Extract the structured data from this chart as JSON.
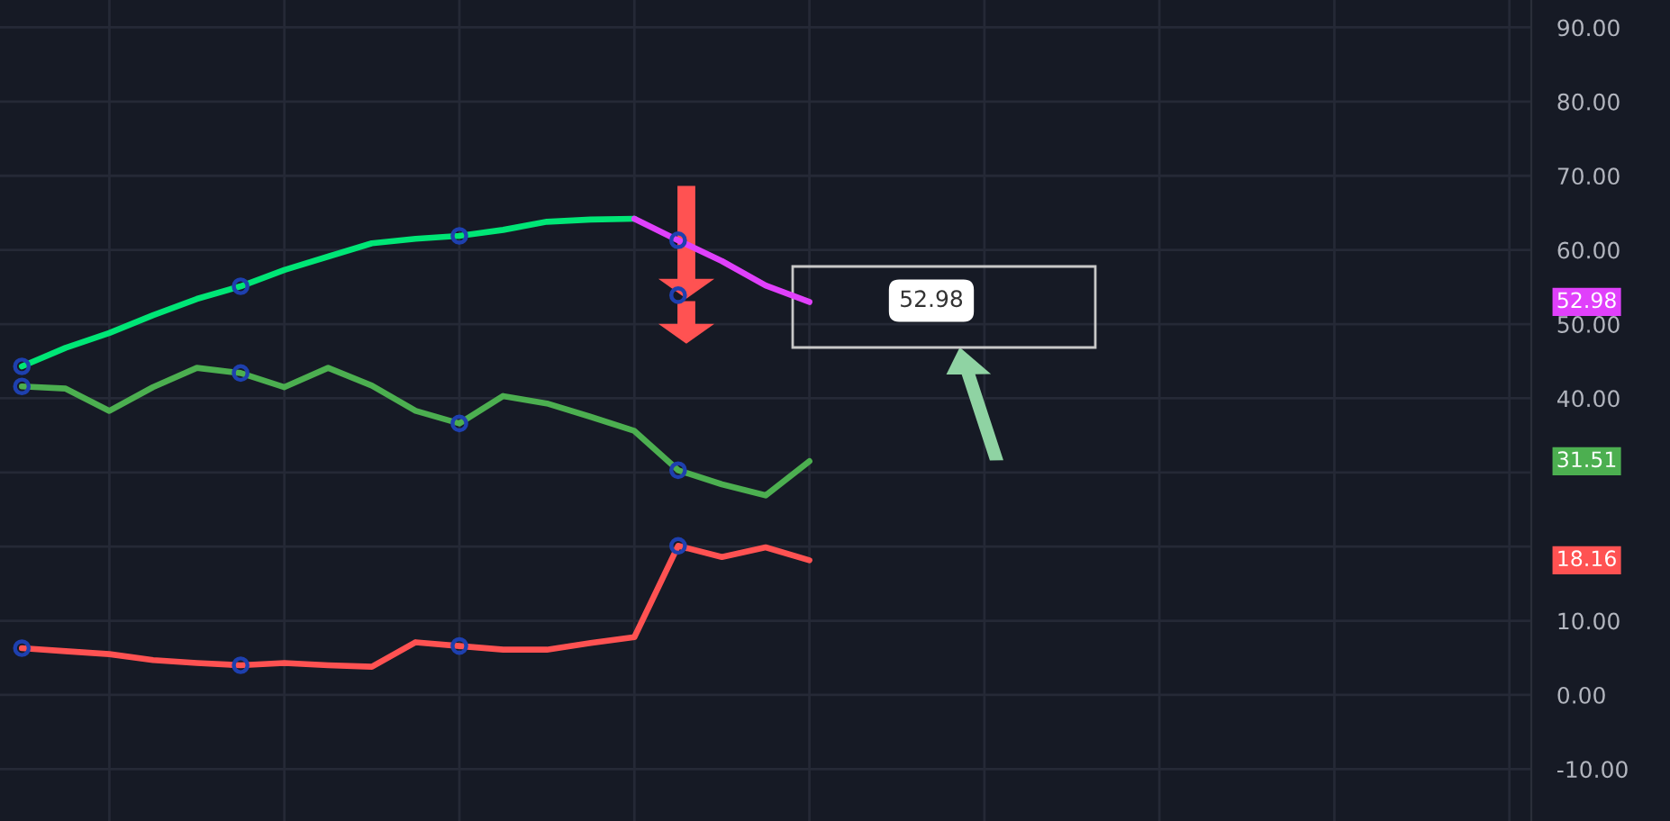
{
  "chart_data": {
    "type": "line",
    "categories": [
      null,
      null,
      null,
      null,
      null,
      null,
      null,
      null,
      null,
      null,
      null,
      null,
      null,
      null,
      null,
      null,
      null,
      null,
      null,
      null,
      null,
      null,
      null,
      null,
      null,
      null,
      null,
      null,
      null,
      null,
      null,
      null,
      null,
      null,
      null
    ],
    "series": [
      {
        "color": "#00e676",
        "values": [
          44.3,
          46.8,
          48.8,
          51.2,
          53.4,
          55.1,
          57.3,
          59.1,
          60.9,
          61.5,
          61.9,
          62.7,
          63.8,
          64.1,
          64.2,
          null,
          null,
          null,
          null,
          null,
          null,
          null,
          null,
          null,
          null,
          null,
          null,
          null,
          null,
          null,
          null,
          null,
          null,
          null,
          null
        ]
      },
      {
        "color": "#e040fb",
        "values": [
          null,
          null,
          null,
          null,
          null,
          null,
          null,
          null,
          null,
          null,
          null,
          null,
          null,
          null,
          64.2,
          61.3,
          58.5,
          55.2,
          52.98,
          null,
          null,
          null,
          null,
          null,
          null,
          null,
          null,
          null,
          null,
          null,
          null,
          null,
          null,
          null,
          null
        ]
      },
      {
        "color": "#4caf50",
        "values": [
          41.6,
          41.3,
          38.3,
          41.5,
          44.1,
          43.4,
          41.5,
          44.1,
          41.7,
          38.3,
          36.6,
          40.3,
          39.3,
          37.5,
          35.6,
          30.3,
          28.4,
          26.9,
          31.51,
          null,
          null,
          null,
          null,
          null,
          null,
          null,
          null,
          null,
          null,
          null,
          null,
          null,
          null,
          null,
          null
        ]
      },
      {
        "color": "#ff5252",
        "values": [
          6.3,
          5.9,
          5.5,
          4.7,
          4.3,
          4.0,
          4.3,
          4.0,
          3.8,
          7.1,
          6.6,
          6.1,
          6.1,
          7.0,
          7.8,
          20.1,
          18.6,
          19.9,
          18.16,
          null,
          null,
          null,
          null,
          null,
          null,
          null,
          null,
          null,
          null,
          null,
          null,
          null,
          null,
          null,
          null
        ]
      },
      {
        "type": "scatter",
        "marker": "circle",
        "color": "#1e40af",
        "values": [
          44.3,
          null,
          null,
          null,
          null,
          55.1,
          null,
          null,
          null,
          null,
          61.9,
          null,
          null,
          null,
          null,
          61.3,
          null,
          null,
          null,
          null,
          null,
          null,
          null,
          null,
          null,
          null,
          null,
          null,
          null,
          null,
          null,
          null,
          null,
          null,
          null
        ]
      },
      {
        "type": "scatter",
        "marker": "circle",
        "color": "#1e40af",
        "values": [
          41.6,
          null,
          null,
          null,
          null,
          43.4,
          null,
          null,
          null,
          null,
          36.6,
          null,
          null,
          null,
          null,
          30.3,
          null,
          null,
          null,
          null,
          null,
          null,
          null,
          null,
          null,
          null,
          null,
          null,
          null,
          null,
          null,
          null,
          null,
          null,
          null
        ]
      },
      {
        "type": "scatter",
        "marker": "circle",
        "color": "#1e40af",
        "values": [
          6.3,
          null,
          null,
          null,
          null,
          4.0,
          null,
          null,
          null,
          null,
          6.6,
          null,
          null,
          null,
          null,
          20.1,
          null,
          null,
          null,
          null,
          null,
          null,
          null,
          null,
          null,
          null,
          null,
          null,
          null,
          null,
          null,
          null,
          null,
          null,
          null
        ]
      },
      {
        "type": "scatter",
        "marker": "circle",
        "color": "#1e40af",
        "values": [
          null,
          null,
          null,
          null,
          null,
          null,
          null,
          null,
          null,
          null,
          null,
          null,
          null,
          null,
          null,
          53.9,
          null,
          null,
          null,
          null,
          null,
          null,
          null,
          null,
          null,
          null,
          null,
          null,
          null,
          null,
          null,
          null,
          null,
          null,
          null
        ]
      }
    ],
    "annotations": [
      "52.98",
      "52.98",
      "31.51",
      "18.16"
    ],
    "ylim": [
      -17,
      93.7
    ],
    "yticks": [
      {
        "value": -10,
        "label": "-10.00"
      },
      {
        "value": 0,
        "label": "0.00"
      },
      {
        "value": 10,
        "label": "10.00"
      },
      {
        "value": 20,
        "label": null
      },
      {
        "value": 30,
        "label": null
      },
      {
        "value": 40,
        "label": "40.00"
      },
      {
        "value": 50,
        "label": "50.00"
      },
      {
        "value": 60,
        "label": "60.00"
      },
      {
        "value": 70,
        "label": "70.00"
      },
      {
        "value": 80,
        "label": "80.00"
      },
      {
        "value": 90,
        "label": "90.00"
      }
    ],
    "grid": true,
    "legend": false,
    "tick_labels": "y",
    "line_style": "solid"
  }
}
